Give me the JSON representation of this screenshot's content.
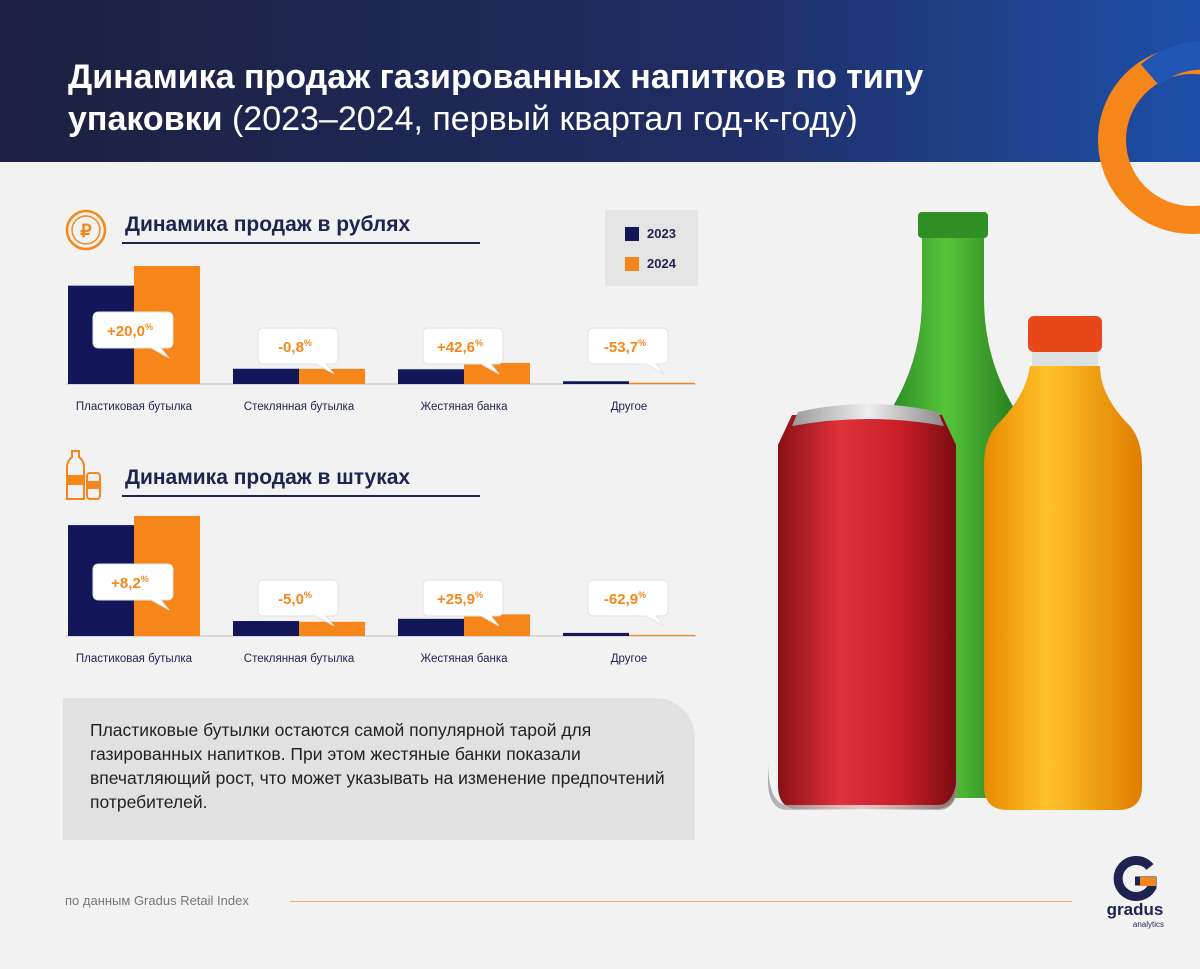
{
  "header": {
    "title_bold": "Динамика продаж газированных напитков по типу упаковки",
    "title_regular": "(2023–2024, первый квартал год-к-году)"
  },
  "legend": {
    "items": [
      {
        "label": "2023",
        "color": "#13175a"
      },
      {
        "label": "2024",
        "color": "#f7861a"
      }
    ]
  },
  "colors": {
    "dark": "#13175a",
    "orange": "#f7861a",
    "accent_text": "#f7861a"
  },
  "chart_data": [
    {
      "type": "bar",
      "title": "Динамика продаж в рублях",
      "icon": "ruble-coin-icon",
      "categories": [
        "Пластиковая бутылка",
        "Стеклянная бутылка",
        "Жестяная банка",
        "Другое"
      ],
      "series": [
        {
          "name": "2023",
          "values": [
            100,
            15.5,
            15.0,
            2.8
          ]
        },
        {
          "name": "2024",
          "values": [
            120,
            15.4,
            21.4,
            1.3
          ]
        }
      ],
      "changes": [
        "+20,0",
        "-0,8",
        "+42,6",
        "-53,7"
      ],
      "change_unit": "%",
      "ylim": [
        0,
        120
      ]
    },
    {
      "type": "bar",
      "title": "Динамика продаж в штуках",
      "icon": "bottle-and-can-icon",
      "categories": [
        "Пластиковая бутылка",
        "Стеклянная бутылка",
        "Жестяная банка",
        "Другое"
      ],
      "series": [
        {
          "name": "2023",
          "values": [
            100,
            13.5,
            15.5,
            2.8
          ]
        },
        {
          "name": "2024",
          "values": [
            108.2,
            12.8,
            19.5,
            1.0
          ]
        }
      ],
      "changes": [
        "+8,2",
        "-5,0",
        "+25,9",
        "-62,9"
      ],
      "change_unit": "%",
      "ylim": [
        0,
        108.2
      ]
    }
  ],
  "note": "Пластиковые бутылки остаются самой популярной тарой для газированных напитков. При этом жестяные банки показали впечатляющий рост, что может указывать на изменение предпочтений потребителей.",
  "source": "по данным Gradus Retail Index",
  "logo": {
    "name": "gradus",
    "sub": "analytics"
  }
}
